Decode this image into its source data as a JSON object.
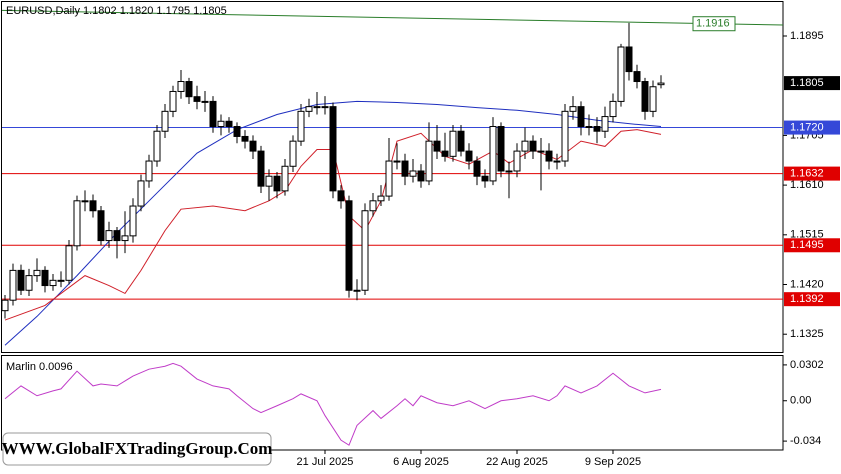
{
  "chart_data": {
    "type": "candlestick",
    "title": "EURUSD,Daily  1.1802 1.1820 1.1795 1.1805",
    "watermark": "WWW.GlobalFXTradingGroup.Com",
    "categories": [
      null,
      null,
      null,
      null,
      null,
      null,
      null,
      null,
      null,
      null,
      null,
      null,
      null,
      null,
      null,
      null,
      null,
      null,
      null,
      null,
      null,
      null,
      null,
      null,
      null,
      null,
      null,
      null,
      null,
      null,
      null,
      null,
      null,
      null,
      null,
      null,
      null,
      null,
      null,
      null,
      "21 Jul 2025",
      null,
      null,
      null,
      null,
      null,
      null,
      null,
      null,
      null,
      null,
      null,
      "6 Aug 2025",
      null,
      null,
      null,
      null,
      null,
      null,
      null,
      null,
      null,
      null,
      null,
      "22 Aug 2025",
      null,
      null,
      null,
      null,
      null,
      null,
      null,
      null,
      null,
      null,
      null,
      "9 Sep 2025",
      null,
      null,
      null,
      null,
      null,
      null
    ],
    "ohlc": [
      [
        1.137,
        1.14,
        1.1355,
        1.139
      ],
      [
        1.139,
        1.146,
        1.138,
        1.1447
      ],
      [
        1.1447,
        1.1458,
        1.14,
        1.1409
      ],
      [
        1.1409,
        1.145,
        1.1398,
        1.1437
      ],
      [
        1.1437,
        1.147,
        1.1425,
        1.1447
      ],
      [
        1.1447,
        1.1455,
        1.1405,
        1.1418
      ],
      [
        1.1418,
        1.144,
        1.1408,
        1.1428
      ],
      [
        1.1428,
        1.1445,
        1.1415,
        1.1428
      ],
      [
        1.1428,
        1.1505,
        1.142,
        1.1494
      ],
      [
        1.1494,
        1.159,
        1.1485,
        1.158
      ],
      [
        1.158,
        1.16,
        1.156,
        1.158
      ],
      [
        1.158,
        1.1592,
        1.1548,
        1.1561
      ],
      [
        1.1561,
        1.157,
        1.1495,
        1.1504
      ],
      [
        1.1504,
        1.154,
        1.149,
        1.1523
      ],
      [
        1.1523,
        1.153,
        1.147,
        1.1504
      ],
      [
        1.1504,
        1.156,
        1.148,
        1.1513
      ],
      [
        1.1513,
        1.1585,
        1.15,
        1.157
      ],
      [
        1.157,
        1.163,
        1.156,
        1.1618
      ],
      [
        1.1618,
        1.1668,
        1.1605,
        1.1656
      ],
      [
        1.1656,
        1.1725,
        1.1645,
        1.1713
      ],
      [
        1.1713,
        1.1765,
        1.17,
        1.1751
      ],
      [
        1.1751,
        1.18,
        1.174,
        1.1789
      ],
      [
        1.1789,
        1.183,
        1.1775,
        1.1808
      ],
      [
        1.1808,
        1.1815,
        1.1765,
        1.1779
      ],
      [
        1.1779,
        1.18,
        1.1755,
        1.177
      ],
      [
        1.177,
        1.179,
        1.175,
        1.177
      ],
      [
        1.177,
        1.178,
        1.171,
        1.1722
      ],
      [
        1.1722,
        1.1745,
        1.1705,
        1.1732
      ],
      [
        1.1732,
        1.174,
        1.171,
        1.1722
      ],
      [
        1.1722,
        1.173,
        1.169,
        1.1703
      ],
      [
        1.1703,
        1.1715,
        1.168,
        1.1694
      ],
      [
        1.1694,
        1.1705,
        1.166,
        1.1675
      ],
      [
        1.1675,
        1.1685,
        1.1595,
        1.1608
      ],
      [
        1.1608,
        1.164,
        1.158,
        1.1627
      ],
      [
        1.1627,
        1.1635,
        1.1585,
        1.1599
      ],
      [
        1.1599,
        1.166,
        1.159,
        1.1646
      ],
      [
        1.1646,
        1.1705,
        1.1635,
        1.1694
      ],
      [
        1.1694,
        1.1765,
        1.1685,
        1.1751
      ],
      [
        1.1751,
        1.1775,
        1.174,
        1.176
      ],
      [
        1.176,
        1.1788,
        1.1745,
        1.176
      ],
      [
        1.176,
        1.178,
        1.1745,
        1.176
      ],
      [
        1.176,
        1.1768,
        1.1585,
        1.1599
      ],
      [
        1.1599,
        1.161,
        1.1565,
        1.158
      ],
      [
        1.158,
        1.159,
        1.1395,
        1.1409
      ],
      [
        1.1409,
        1.143,
        1.139,
        1.1409
      ],
      [
        1.1409,
        1.1575,
        1.14,
        1.1561
      ],
      [
        1.1561,
        1.1595,
        1.155,
        1.158
      ],
      [
        1.158,
        1.161,
        1.157,
        1.1589
      ],
      [
        1.1589,
        1.17,
        1.158,
        1.1656
      ],
      [
        1.1656,
        1.169,
        1.164,
        1.1656
      ],
      [
        1.1656,
        1.167,
        1.161,
        1.1627
      ],
      [
        1.1627,
        1.166,
        1.1615,
        1.1637
      ],
      [
        1.1637,
        1.165,
        1.1605,
        1.1618
      ],
      [
        1.1618,
        1.173,
        1.161,
        1.1694
      ],
      [
        1.1694,
        1.1725,
        1.166,
        1.1675
      ],
      [
        1.1675,
        1.171,
        1.1655,
        1.1665
      ],
      [
        1.1665,
        1.1725,
        1.1655,
        1.1713
      ],
      [
        1.1713,
        1.1725,
        1.1665,
        1.1675
      ],
      [
        1.1675,
        1.169,
        1.164,
        1.1656
      ],
      [
        1.1656,
        1.1665,
        1.161,
        1.1627
      ],
      [
        1.1627,
        1.164,
        1.1605,
        1.1618
      ],
      [
        1.1618,
        1.174,
        1.161,
        1.1722
      ],
      [
        1.1722,
        1.173,
        1.1625,
        1.1637
      ],
      [
        1.1637,
        1.1655,
        1.1585,
        1.1637
      ],
      [
        1.1637,
        1.169,
        1.1625,
        1.1675
      ],
      [
        1.1675,
        1.172,
        1.166,
        1.1694
      ],
      [
        1.1694,
        1.1705,
        1.166,
        1.1675
      ],
      [
        1.1675,
        1.17,
        1.16,
        1.1675
      ],
      [
        1.1675,
        1.169,
        1.164,
        1.1656
      ],
      [
        1.1656,
        1.167,
        1.164,
        1.1656
      ],
      [
        1.1656,
        1.1765,
        1.1645,
        1.1751
      ],
      [
        1.1751,
        1.178,
        1.1735,
        1.176
      ],
      [
        1.176,
        1.177,
        1.1705,
        1.1722
      ],
      [
        1.1722,
        1.1745,
        1.1705,
        1.1722
      ],
      [
        1.1722,
        1.174,
        1.169,
        1.1713
      ],
      [
        1.1713,
        1.176,
        1.17,
        1.1741
      ],
      [
        1.1741,
        1.1785,
        1.173,
        1.177
      ],
      [
        1.177,
        1.188,
        1.176,
        1.1874
      ],
      [
        1.1874,
        1.192,
        1.181,
        1.1827
      ],
      [
        1.1827,
        1.184,
        1.1795,
        1.1808
      ],
      [
        1.1808,
        1.1815,
        1.1735,
        1.1751
      ],
      [
        1.1751,
        1.181,
        1.174,
        1.1798
      ],
      [
        1.1802,
        1.182,
        1.1795,
        1.1805
      ]
    ],
    "up_color": "#ffffff",
    "down_color": "#000000",
    "ylim": [
      1.1291,
      1.196
    ],
    "yticks": [
      1.1895,
      1.1705,
      {
        "value": 1.161,
        "label": "1.1610"
      },
      1.1515,
      {
        "value": 1.142,
        "label": "1.1420"
      },
      1.1325
    ],
    "last_color": "#000000",
    "series": [
      {
        "color": "#1f2fbf",
        "x": [
          0,
          4,
          9,
          14,
          19,
          24,
          29,
          34,
          39,
          44,
          49,
          54,
          59,
          64,
          69,
          74,
          79,
          82
        ],
        "values": [
          1.1304,
          1.1359,
          1.1437,
          1.1519,
          1.1595,
          1.1671,
          1.1716,
          1.1745,
          1.1764,
          1.177,
          1.1768,
          1.1764,
          1.1758,
          1.1753,
          1.1745,
          1.1734,
          1.1726,
          1.1722
        ]
      },
      {
        "color": "#d0202a",
        "x": [
          0,
          5,
          10,
          13,
          15,
          17,
          20,
          22,
          26,
          30,
          33,
          35,
          37,
          39,
          41,
          43,
          45,
          47,
          49,
          52,
          55,
          58,
          61,
          63,
          66,
          69,
          72,
          75,
          77,
          79,
          82
        ],
        "values": [
          1.1352,
          1.138,
          1.1437,
          1.1418,
          1.1403,
          1.1447,
          1.1523,
          1.1564,
          1.157,
          1.1561,
          1.158,
          1.1599,
          1.1646,
          1.1678,
          1.1678,
          1.1551,
          1.1523,
          1.158,
          1.1694,
          1.1709,
          1.1665,
          1.165,
          1.1675,
          1.1652,
          1.1678,
          1.1659,
          1.1694,
          1.1684,
          1.1713,
          1.1716,
          1.1707
        ]
      }
    ],
    "levels": [
      {
        "value": 1.172,
        "label": "1.1720",
        "color": "#3548d8"
      },
      {
        "value": 1.1632,
        "label": "1.1632",
        "color": "#e00000"
      },
      {
        "value": 1.1495,
        "label": "1.1495",
        "color": "#e00000"
      },
      {
        "value": 1.1392,
        "label": "1.1392",
        "color": "#e00000"
      }
    ],
    "trendline": {
      "values": [
        1.1944,
        1.1916
      ],
      "color": "#2a7d2a"
    },
    "indicator": {
      "type": "line",
      "label": "Marlin 0.0096",
      "color": "#c03cc8",
      "ylim": [
        -0.0415,
        0.0377
      ],
      "yticks": [
        0.0302,
        {
          "value": 0,
          "label": "0.00"
        },
        -0.034
      ],
      "x": [
        0,
        2,
        4,
        6,
        7,
        9,
        11,
        12,
        14,
        16,
        18,
        20,
        21,
        22,
        24,
        26,
        28,
        29,
        31,
        32,
        34,
        36,
        37,
        39,
        40,
        42,
        43,
        44,
        46,
        47,
        49,
        50,
        51,
        52,
        54,
        56,
        58,
        60,
        62,
        64,
        66,
        68,
        69,
        70,
        72,
        74,
        76,
        78,
        80,
        82
      ],
      "values": [
        0.0017,
        0.0125,
        0.0042,
        0.0083,
        0.01,
        0.0249,
        0.0125,
        0.0141,
        0.0125,
        0.0208,
        0.0266,
        0.0291,
        0.0315,
        0.0291,
        0.0183,
        0.0125,
        0.01,
        0.0042,
        -0.0066,
        -0.01,
        -0.0042,
        0.0017,
        0.0058,
        0,
        -0.0125,
        -0.0332,
        -0.0374,
        -0.0208,
        -0.0083,
        -0.0149,
        -0.0042,
        0.0017,
        -0.0042,
        0.0042,
        -0.0017,
        -0.0042,
        0,
        -0.0066,
        0,
        0.0017,
        0.0042,
        0,
        0.0042,
        0.0125,
        0.0066,
        0.0125,
        0.0232,
        0.0125,
        0.0066,
        0.0096
      ]
    }
  }
}
